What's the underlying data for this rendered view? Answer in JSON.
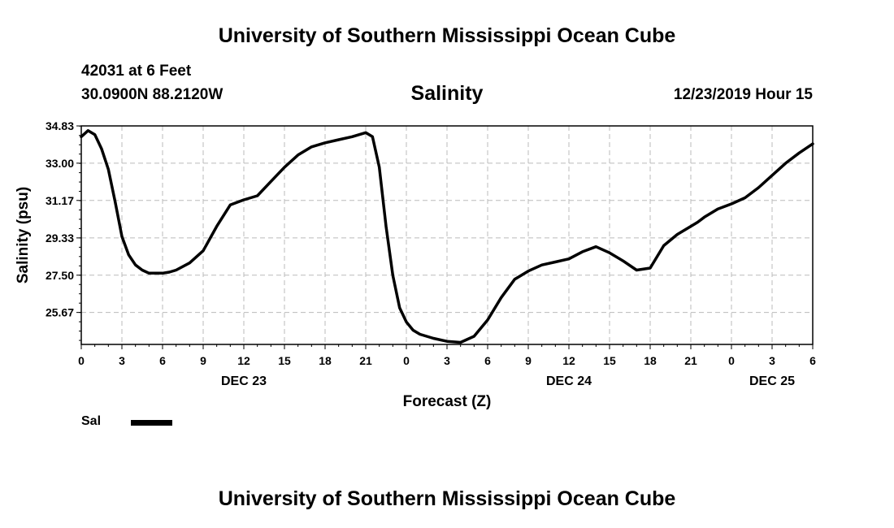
{
  "header": {
    "top_title": "University of Southern Mississippi Ocean Cube",
    "station": "42031 at 6 Feet",
    "coordinates": "30.0900N 88.2120W",
    "timestamp": "12/23/2019 Hour 15",
    "bottom_title": "University of Southern Mississippi Ocean Cube"
  },
  "legend": {
    "label": "Sal"
  },
  "colors": {
    "line": "#000000",
    "grid": "#bbbbbb",
    "axis": "#000000"
  },
  "chart_data": {
    "type": "line",
    "title": "Salinity",
    "xlabel": "Forecast (Z)",
    "ylabel": "Salinity (psu)",
    "xlim": [
      0,
      54
    ],
    "ylim": [
      24.1,
      34.83
    ],
    "yticks": [
      25.67,
      27.5,
      29.33,
      31.17,
      33.0,
      34.83
    ],
    "ytick_labels": [
      "25.67",
      "27.50",
      "29.33",
      "31.17",
      "33.00",
      "34.83"
    ],
    "xticks": [
      0,
      3,
      6,
      9,
      12,
      15,
      18,
      21,
      24,
      27,
      30,
      33,
      36,
      39,
      42,
      45,
      48,
      51,
      54
    ],
    "xtick_labels": [
      "0",
      "3",
      "6",
      "9",
      "12",
      "15",
      "18",
      "21",
      "0",
      "3",
      "6",
      "9",
      "12",
      "15",
      "18",
      "21",
      "0",
      "3",
      "6"
    ],
    "date_labels": [
      {
        "x": 12,
        "label": "DEC 23"
      },
      {
        "x": 36,
        "label": "DEC 24"
      },
      {
        "x": 51,
        "label": "DEC 25"
      }
    ],
    "grid": true,
    "series": [
      {
        "name": "Sal",
        "x": [
          0,
          0.5,
          1,
          1.5,
          2,
          2.5,
          3,
          3.5,
          4,
          4.5,
          5,
          6,
          6.5,
          7,
          8,
          9,
          10,
          11,
          12,
          13,
          14,
          15,
          16,
          17,
          18,
          19,
          20,
          21,
          21.5,
          22,
          22.5,
          23,
          23.5,
          24,
          24.5,
          25,
          26,
          27,
          28,
          29,
          30,
          31,
          32,
          33,
          34,
          35,
          36,
          37,
          38,
          39,
          40,
          41,
          42,
          43,
          44,
          45,
          45.5,
          46,
          47,
          48,
          49,
          50,
          51,
          52,
          53,
          54
        ],
        "y": [
          34.3,
          34.6,
          34.4,
          33.7,
          32.7,
          31.1,
          29.4,
          28.5,
          28.0,
          27.75,
          27.6,
          27.6,
          27.65,
          27.75,
          28.1,
          28.7,
          29.9,
          30.95,
          31.2,
          31.4,
          32.1,
          32.8,
          33.4,
          33.8,
          34.0,
          34.15,
          34.3,
          34.5,
          34.3,
          32.8,
          29.9,
          27.5,
          25.9,
          25.2,
          24.8,
          24.6,
          24.4,
          24.25,
          24.2,
          24.5,
          25.3,
          26.4,
          27.3,
          27.7,
          28.0,
          28.15,
          28.3,
          28.65,
          28.9,
          28.6,
          28.2,
          27.75,
          27.85,
          28.95,
          29.5,
          29.9,
          30.1,
          30.35,
          30.75,
          31.0,
          31.3,
          31.8,
          32.4,
          33.0,
          33.5,
          33.95
        ]
      }
    ]
  }
}
